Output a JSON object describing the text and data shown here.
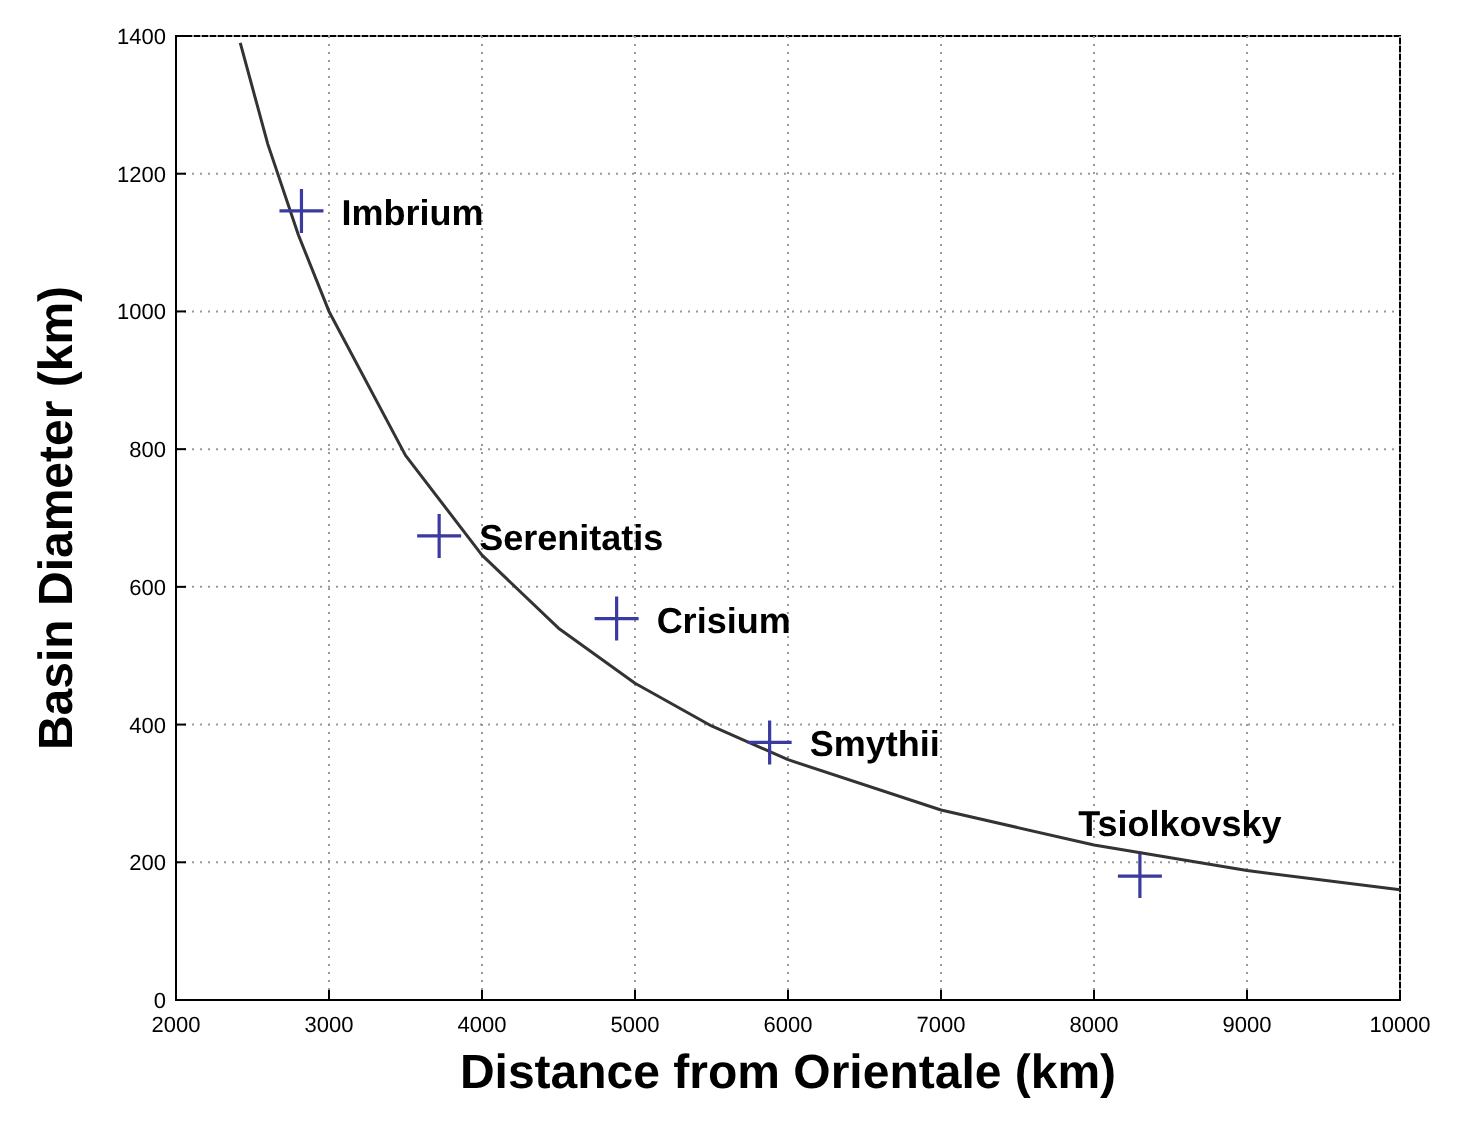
{
  "chart_data": {
    "type": "scatter",
    "xlabel": "Distance from Orientale (km)",
    "ylabel": "Basin Diameter (km)",
    "xlim": [
      2000,
      10000
    ],
    "xticks": [
      2000,
      3000,
      4000,
      5000,
      6000,
      7000,
      8000,
      9000,
      10000
    ],
    "ylim": [
      0,
      1400
    ],
    "yticks": [
      0,
      200,
      400,
      600,
      800,
      1000,
      1200,
      1400
    ],
    "grid": true,
    "series": [
      {
        "type": "line",
        "color": "#333333",
        "marker": "none",
        "x": [
          2420,
          2600,
          2800,
          3000,
          3500,
          4000,
          4500,
          5000,
          5500,
          6000,
          7000,
          8000,
          9000,
          10000
        ],
        "values": [
          1390,
          1243,
          1111,
          1000,
          791,
          646,
          540,
          460,
          398,
          349,
          276,
          225,
          188,
          160
        ]
      },
      {
        "color": "#3a3aa0",
        "marker": "cross",
        "x": [
          2820,
          3720,
          4880,
          5880,
          8300
        ],
        "values": [
          1146,
          674,
          554,
          374,
          180
        ]
      }
    ],
    "annotations": [
      {
        "text": "Imbrium",
        "x": 2820,
        "y": 1146
      },
      {
        "text": "Serenitatis",
        "x": 3720,
        "y": 674
      },
      {
        "text": "Crisium",
        "x": 4880,
        "y": 554
      },
      {
        "text": "Smythii",
        "x": 5880,
        "y": 374
      },
      {
        "text": "Tsiolkovsky",
        "x": 8300,
        "y": 180
      }
    ]
  }
}
